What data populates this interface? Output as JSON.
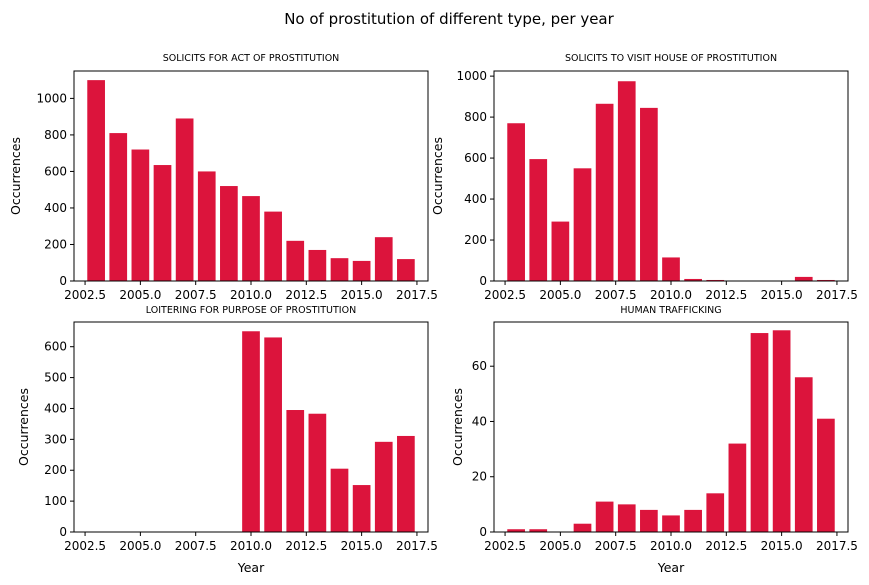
{
  "suptitle": "No of prostitution of different type, per year",
  "chart_data": [
    {
      "type": "bar",
      "title": "SOLICITS FOR ACT OF PROSTITUTION",
      "xlabel": "",
      "ylabel": "Occurrences",
      "x": [
        2003,
        2004,
        2005,
        2006,
        2007,
        2008,
        2009,
        2010,
        2011,
        2012,
        2013,
        2014,
        2015,
        2016,
        2017
      ],
      "values": [
        1100,
        810,
        720,
        635,
        890,
        600,
        520,
        465,
        380,
        220,
        170,
        125,
        110,
        240,
        120
      ],
      "xlim": [
        2002.0,
        2018.0
      ],
      "ylim": [
        0,
        1150
      ],
      "xticks": [
        "2002.5",
        "2005.0",
        "2007.5",
        "2010.0",
        "2012.5",
        "2015.0",
        "2017.5"
      ],
      "yticks": [
        "0",
        "200",
        "400",
        "600",
        "800",
        "1000"
      ]
    },
    {
      "type": "bar",
      "title": "SOLICITS TO VISIT HOUSE OF PROSTITUTION",
      "xlabel": "",
      "ylabel": "Occurrences",
      "x": [
        2003,
        2004,
        2005,
        2006,
        2007,
        2008,
        2009,
        2010,
        2011,
        2012,
        2013,
        2014,
        2015,
        2016,
        2017
      ],
      "values": [
        770,
        595,
        290,
        550,
        865,
        975,
        845,
        115,
        10,
        5,
        0,
        0,
        0,
        20,
        5
      ],
      "xlim": [
        2002.0,
        2018.0
      ],
      "ylim": [
        0,
        1025
      ],
      "xticks": [
        "2002.5",
        "2005.0",
        "2007.5",
        "2010.0",
        "2012.5",
        "2015.0",
        "2017.5"
      ],
      "yticks": [
        "0",
        "200",
        "400",
        "600",
        "800",
        "1000"
      ]
    },
    {
      "type": "bar",
      "title": "LOITERING FOR PURPOSE OF PROSTITUTION",
      "xlabel": "Year",
      "ylabel": "Occurrences",
      "x": [
        2003,
        2004,
        2005,
        2006,
        2007,
        2008,
        2009,
        2010,
        2011,
        2012,
        2013,
        2014,
        2015,
        2016,
        2017
      ],
      "values": [
        0,
        0,
        0,
        0,
        0,
        0,
        0,
        650,
        630,
        395,
        383,
        205,
        152,
        292,
        311
      ],
      "xlim": [
        2002.0,
        2018.0
      ],
      "ylim": [
        0,
        680
      ],
      "xticks": [
        "2002.5",
        "2005.0",
        "2007.5",
        "2010.0",
        "2012.5",
        "2015.0",
        "2017.5"
      ],
      "yticks": [
        "0",
        "100",
        "200",
        "300",
        "400",
        "500",
        "600"
      ]
    },
    {
      "type": "bar",
      "title": "HUMAN TRAFFICKING",
      "xlabel": "Year",
      "ylabel": "Occurrences",
      "x": [
        2003,
        2004,
        2005,
        2006,
        2007,
        2008,
        2009,
        2010,
        2011,
        2012,
        2013,
        2014,
        2015,
        2016,
        2017
      ],
      "values": [
        1,
        1,
        0,
        3,
        11,
        10,
        8,
        6,
        8,
        14,
        32,
        72,
        73,
        56,
        41
      ],
      "xlim": [
        2002.0,
        2018.0
      ],
      "ylim": [
        0,
        76
      ],
      "xticks": [
        "2002.5",
        "2005.0",
        "2007.5",
        "2010.0",
        "2012.5",
        "2015.0",
        "2017.5"
      ],
      "yticks": [
        "0",
        "20",
        "40",
        "60"
      ]
    }
  ]
}
